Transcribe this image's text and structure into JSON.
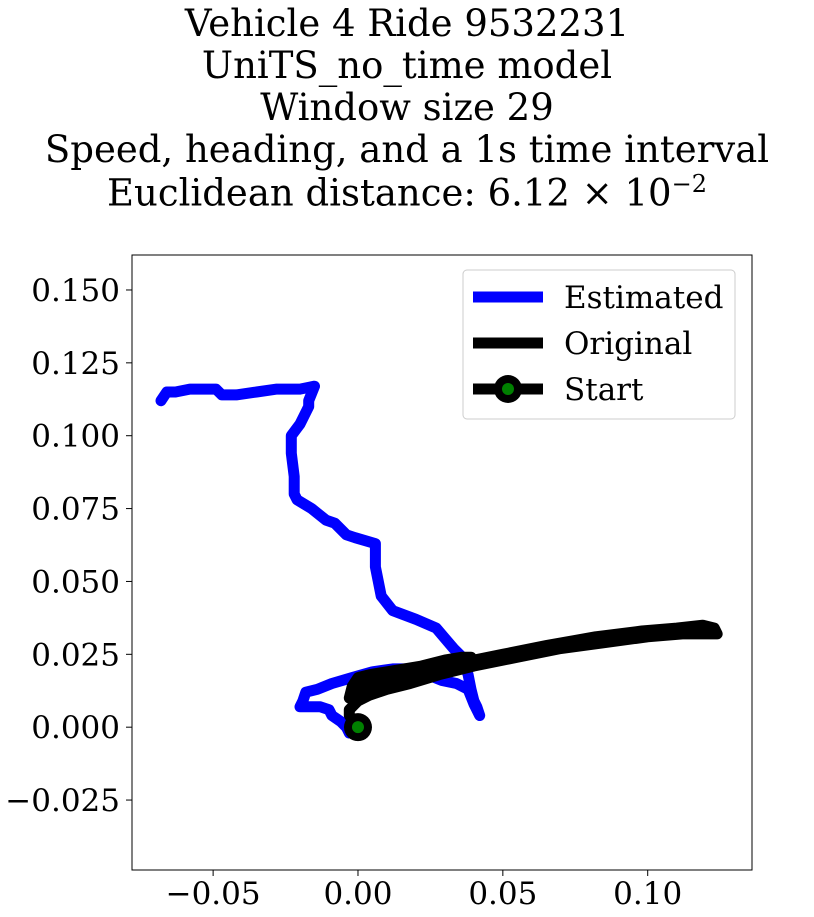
{
  "chart_data": {
    "type": "line",
    "title_lines": [
      "Vehicle 4 Ride 9532231",
      "UniTS_no_time model",
      "Window size 29",
      "Speed, heading, and a 1s time interval"
    ],
    "distance_label": "Euclidean distance: ",
    "distance_mantissa": "6.12",
    "distance_times": " × 10",
    "distance_exponent": "−2",
    "xlim": [
      -0.078,
      0.136
    ],
    "ylim": [
      -0.049,
      0.162
    ],
    "xticks": [
      -0.05,
      0.0,
      0.05,
      0.1
    ],
    "xtick_labels": [
      "−0.05",
      "0.00",
      "0.05",
      "0.10"
    ],
    "yticks": [
      -0.025,
      0.0,
      0.025,
      0.05,
      0.075,
      0.1,
      0.125,
      0.15
    ],
    "ytick_labels": [
      "−0.025",
      "0.000",
      "0.025",
      "0.050",
      "0.075",
      "0.100",
      "0.125",
      "0.150"
    ],
    "legend_position": "upper right",
    "grid": false,
    "series": [
      {
        "name": "Estimated",
        "color": "#0000ff",
        "points": [
          [
            -0.068,
            0.112
          ],
          [
            -0.066,
            0.115
          ],
          [
            -0.063,
            0.115
          ],
          [
            -0.058,
            0.116
          ],
          [
            -0.049,
            0.116
          ],
          [
            -0.047,
            0.114
          ],
          [
            -0.042,
            0.114
          ],
          [
            -0.035,
            0.115
          ],
          [
            -0.028,
            0.116
          ],
          [
            -0.02,
            0.116
          ],
          [
            -0.015,
            0.117
          ],
          [
            -0.017,
            0.112
          ],
          [
            -0.017,
            0.11
          ],
          [
            -0.02,
            0.104
          ],
          [
            -0.023,
            0.1
          ],
          [
            -0.023,
            0.094
          ],
          [
            -0.022,
            0.086
          ],
          [
            -0.022,
            0.08
          ],
          [
            -0.021,
            0.078
          ],
          [
            -0.016,
            0.075
          ],
          [
            -0.011,
            0.071
          ],
          [
            -0.008,
            0.07
          ],
          [
            -0.004,
            0.066
          ],
          [
            -0.001,
            0.065
          ],
          [
            0.006,
            0.063
          ],
          [
            0.006,
            0.055
          ],
          [
            0.008,
            0.045
          ],
          [
            0.012,
            0.04
          ],
          [
            0.02,
            0.037
          ],
          [
            0.027,
            0.034
          ],
          [
            0.033,
            0.027
          ],
          [
            0.036,
            0.024
          ],
          [
            0.038,
            0.018
          ],
          [
            0.039,
            0.013
          ],
          [
            0.04,
            0.009
          ],
          [
            0.041,
            0.007
          ],
          [
            0.042,
            0.004
          ],
          [
            0.04,
            0.008
          ],
          [
            0.038,
            0.013
          ],
          [
            0.034,
            0.015
          ],
          [
            0.029,
            0.016
          ],
          [
            0.024,
            0.018
          ],
          [
            0.018,
            0.02
          ],
          [
            0.012,
            0.02
          ],
          [
            0.005,
            0.019
          ],
          [
            -0.002,
            0.017
          ],
          [
            -0.009,
            0.015
          ],
          [
            -0.014,
            0.013
          ],
          [
            -0.018,
            0.012
          ],
          [
            -0.019,
            0.009
          ],
          [
            -0.02,
            0.007
          ],
          [
            -0.017,
            0.007
          ],
          [
            -0.013,
            0.007
          ],
          [
            -0.01,
            0.006
          ],
          [
            -0.009,
            0.004
          ],
          [
            -0.006,
            0.002
          ],
          [
            -0.004,
            0.0
          ],
          [
            -0.003,
            -0.002
          ]
        ]
      },
      {
        "name": "Original",
        "color": "#000000",
        "points": [
          [
            0.0,
            0.0
          ],
          [
            -0.003,
            0.004
          ],
          [
            -0.003,
            0.006
          ],
          [
            0.0,
            0.009
          ],
          [
            0.004,
            0.011
          ],
          [
            0.01,
            0.013
          ],
          [
            0.018,
            0.015
          ],
          [
            0.028,
            0.018
          ],
          [
            0.04,
            0.021
          ],
          [
            0.055,
            0.024
          ],
          [
            0.07,
            0.027
          ],
          [
            0.085,
            0.029
          ],
          [
            0.1,
            0.031
          ],
          [
            0.112,
            0.032
          ],
          [
            0.12,
            0.032
          ],
          [
            0.124,
            0.032
          ],
          [
            0.123,
            0.034
          ],
          [
            0.119,
            0.035
          ],
          [
            0.11,
            0.034
          ],
          [
            0.098,
            0.033
          ],
          [
            0.082,
            0.031
          ],
          [
            0.065,
            0.028
          ],
          [
            0.05,
            0.025
          ],
          [
            0.04,
            0.023
          ],
          [
            0.03,
            0.022
          ],
          [
            0.022,
            0.021
          ],
          [
            0.016,
            0.02
          ],
          [
            0.01,
            0.019
          ],
          [
            0.004,
            0.018
          ],
          [
            0.0,
            0.017
          ],
          [
            -0.002,
            0.014
          ],
          [
            -0.003,
            0.01
          ],
          [
            0.0,
            0.012
          ],
          [
            0.006,
            0.015
          ],
          [
            0.014,
            0.018
          ],
          [
            0.022,
            0.021
          ],
          [
            0.03,
            0.023
          ],
          [
            0.036,
            0.024
          ],
          [
            0.039,
            0.024
          ],
          [
            0.037,
            0.022
          ],
          [
            0.03,
            0.021
          ],
          [
            0.02,
            0.019
          ],
          [
            0.012,
            0.017
          ],
          [
            0.005,
            0.015
          ],
          [
            0.0,
            0.013
          ]
        ]
      }
    ],
    "start_marker": {
      "name": "Start",
      "point": [
        0.0,
        0.0
      ],
      "outer_color": "#000000",
      "inner_color": "#008000"
    }
  }
}
